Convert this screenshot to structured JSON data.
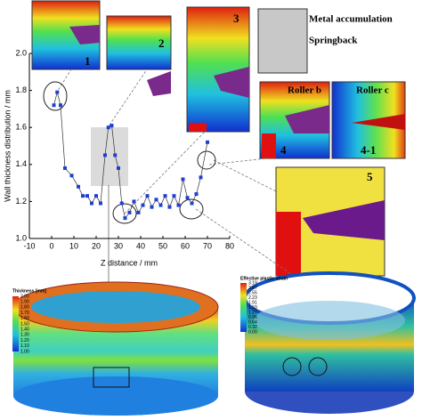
{
  "chart_data": {
    "type": "line",
    "x_label": "Z distance / mm",
    "y_label": "Wall thickness distribution / mm",
    "color": "#1f3fd0",
    "xlim": [
      -10,
      80
    ],
    "xticks": [
      -10,
      0,
      10,
      20,
      30,
      40,
      50,
      60,
      70,
      80
    ],
    "ylim": [
      1.0,
      2.0
    ],
    "yticks": [
      {
        "value": 1.0,
        "label": "1.0"
      },
      1.2,
      1.4,
      1.6,
      1.8,
      {
        "value": 2.0,
        "label": "2.0"
      }
    ],
    "x": [
      1,
      2.5,
      4,
      6,
      9,
      12,
      14,
      16,
      18,
      20,
      22,
      24,
      25.5,
      27,
      28.5,
      30,
      31.5,
      33,
      35,
      37,
      39,
      41,
      43,
      45,
      47,
      49,
      51,
      53,
      55,
      57,
      59,
      61,
      63,
      65,
      67,
      70
    ],
    "values": [
      1.72,
      1.79,
      1.72,
      1.38,
      1.34,
      1.28,
      1.23,
      1.23,
      1.19,
      1.23,
      1.19,
      1.45,
      1.6,
      1.61,
      1.45,
      1.38,
      1.19,
      1.11,
      1.14,
      1.2,
      1.14,
      1.18,
      1.23,
      1.17,
      1.21,
      1.18,
      1.23,
      1.17,
      1.23,
      1.18,
      1.32,
      1.22,
      1.19,
      1.24,
      1.33,
      1.52
    ]
  },
  "figure": {
    "panel_labels": [
      "1",
      "2",
      "3",
      "4",
      "4-1",
      "5"
    ],
    "annotations": [
      "Metal accumulation",
      "Springback",
      "Roller b",
      "Roller c"
    ],
    "thickness_legend": {
      "title": "Thickness [mm]",
      "ticks": [
        "2.00",
        "1.90",
        "1.80",
        "1.70",
        "1.60",
        "1.50",
        "1.40",
        "1.30",
        "1.20",
        "1.10",
        "1.00"
      ]
    },
    "strain_legend": {
      "title": "Effective plastic strain",
      "ticks": [
        "3.19",
        "2.87",
        "2.55",
        "2.23",
        "1.91",
        "1.59",
        "1.27",
        "0.96",
        "0.64",
        "0.32",
        "0.00"
      ]
    }
  }
}
